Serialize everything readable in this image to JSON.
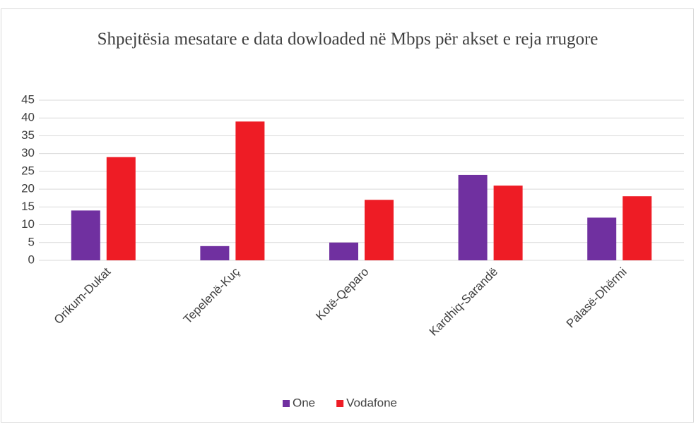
{
  "chart_data": {
    "type": "bar",
    "title": "Shpejtësia mesatare e data dowloaded në Mbps për akset e reja rrugore",
    "categories": [
      "Orikum-Dukat",
      "Tepelenë-Kuç",
      "Kotë-Qeparo",
      "Kardhiq-Sarandë",
      "Palasë-Dhërmi"
    ],
    "series": [
      {
        "name": "One",
        "color": "#7030a0",
        "values": [
          14,
          4,
          5,
          24,
          12
        ]
      },
      {
        "name": "Vodafone",
        "color": "#ee1c25",
        "values": [
          29,
          39,
          17,
          21,
          18
        ]
      }
    ],
    "ylim": [
      0,
      45
    ],
    "yticks": [
      0,
      5,
      10,
      15,
      20,
      25,
      30,
      35,
      40,
      45
    ],
    "grid": true,
    "legend": "bottom"
  }
}
